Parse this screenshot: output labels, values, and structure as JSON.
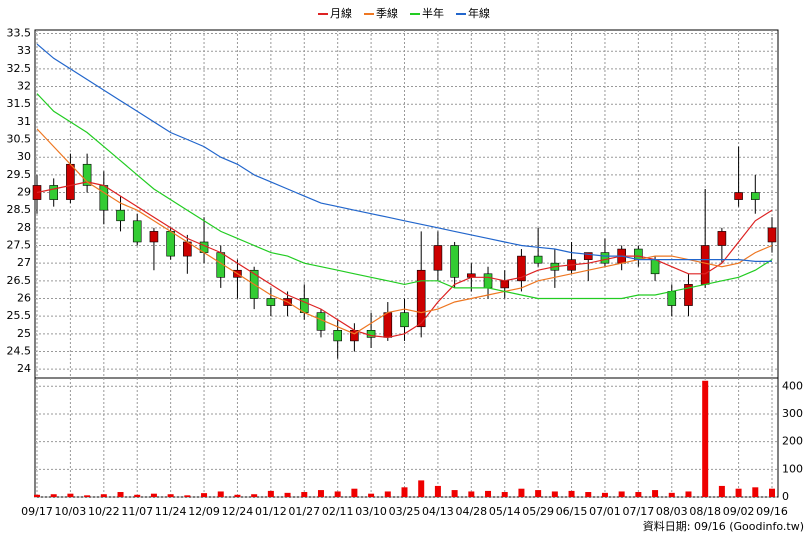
{
  "chart_data": {
    "type": "candlestick",
    "categories": [
      "09/17",
      null,
      "10/03",
      null,
      "10/22",
      null,
      "11/07",
      null,
      "11/24",
      null,
      "12/09",
      null,
      "12/24",
      null,
      "01/12",
      null,
      "01/27",
      null,
      "02/11",
      null,
      "03/10",
      null,
      "03/25",
      null,
      "04/13",
      null,
      "04/28",
      null,
      "05/14",
      null,
      "05/29",
      null,
      "06/15",
      null,
      "07/01",
      null,
      "07/17",
      null,
      "08/03",
      null,
      "08/18",
      null,
      "09/02",
      null,
      "09/16"
    ],
    "open": [
      28.8,
      29.2,
      28.8,
      29.8,
      29.2,
      28.5,
      28.2,
      27.6,
      27.9,
      27.2,
      27.6,
      27.3,
      26.6,
      26.8,
      26.0,
      25.8,
      26.0,
      25.6,
      25.1,
      24.8,
      25.1,
      24.9,
      25.6,
      25.2,
      26.8,
      27.5,
      26.6,
      26.7,
      26.3,
      26.5,
      27.2,
      27.0,
      26.8,
      27.1,
      27.3,
      27.0,
      27.4,
      27.1,
      26.2,
      25.8,
      26.4,
      27.5,
      28.8,
      29.0,
      27.6
    ],
    "high": [
      29.5,
      29.4,
      30.1,
      30.1,
      29.6,
      28.9,
      28.4,
      28.0,
      28.0,
      27.8,
      28.3,
      27.5,
      27.1,
      26.9,
      26.3,
      26.2,
      26.4,
      25.7,
      25.4,
      25.3,
      25.6,
      25.9,
      26.0,
      27.9,
      27.9,
      27.6,
      27.0,
      26.9,
      26.8,
      27.4,
      28.0,
      27.4,
      27.6,
      27.3,
      27.7,
      27.5,
      27.5,
      27.2,
      26.4,
      26.7,
      29.1,
      28.0,
      30.3,
      29.5,
      28.3
    ],
    "low": [
      28.4,
      28.6,
      28.7,
      29.0,
      28.1,
      27.9,
      27.5,
      26.8,
      27.1,
      26.7,
      27.0,
      26.3,
      26.0,
      25.7,
      25.5,
      25.5,
      25.4,
      24.9,
      24.3,
      24.5,
      24.6,
      24.8,
      24.8,
      24.9,
      26.5,
      26.3,
      26.2,
      26.0,
      26.0,
      26.2,
      26.9,
      26.3,
      26.7,
      26.5,
      26.9,
      26.8,
      26.9,
      26.5,
      25.5,
      25.5,
      26.3,
      27.0,
      28.6,
      28.4,
      27.3
    ],
    "close": [
      29.2,
      28.8,
      29.8,
      29.2,
      28.5,
      28.2,
      27.6,
      27.9,
      27.2,
      27.6,
      27.3,
      26.6,
      26.8,
      26.0,
      25.8,
      26.0,
      25.6,
      25.1,
      24.8,
      25.1,
      24.9,
      25.6,
      25.2,
      26.8,
      27.5,
      26.6,
      26.7,
      26.3,
      26.5,
      27.2,
      27.0,
      26.8,
      27.1,
      27.3,
      27.0,
      27.4,
      27.1,
      26.7,
      25.8,
      26.4,
      27.5,
      27.9,
      29.0,
      28.8,
      28.0
    ],
    "up_color": "#cc0000",
    "down_color": "#33cc33",
    "series": [
      {
        "name": "月線",
        "color": "#dd2222",
        "values": [
          29.0,
          29.1,
          29.2,
          29.3,
          29.2,
          28.9,
          28.6,
          28.3,
          28.0,
          27.7,
          27.5,
          27.3,
          27.0,
          26.7,
          26.4,
          26.1,
          25.9,
          25.7,
          25.4,
          25.1,
          24.95,
          24.9,
          25.0,
          25.3,
          25.9,
          26.4,
          26.6,
          26.6,
          26.5,
          26.6,
          26.8,
          26.9,
          26.95,
          27.0,
          27.1,
          27.2,
          27.2,
          27.1,
          26.9,
          26.7,
          26.7,
          27.0,
          27.6,
          28.2,
          28.5
        ]
      },
      {
        "name": "季線",
        "color": "#ee7722",
        "values": [
          30.8,
          30.3,
          29.8,
          29.3,
          29.0,
          28.7,
          28.5,
          28.2,
          27.9,
          27.6,
          27.3,
          27.0,
          26.7,
          26.4,
          26.1,
          25.9,
          25.6,
          25.4,
          25.2,
          25.0,
          25.3,
          25.6,
          25.7,
          25.6,
          25.7,
          25.9,
          26.0,
          26.1,
          26.2,
          26.3,
          26.5,
          26.6,
          26.7,
          26.8,
          26.9,
          27.0,
          27.1,
          27.2,
          27.2,
          27.1,
          27.0,
          26.9,
          27.0,
          27.3,
          27.5
        ]
      },
      {
        "name": "半年",
        "color": "#22cc22",
        "values": [
          31.8,
          31.3,
          31.0,
          30.7,
          30.3,
          29.9,
          29.5,
          29.1,
          28.8,
          28.5,
          28.2,
          27.9,
          27.7,
          27.5,
          27.3,
          27.2,
          27.0,
          26.9,
          26.8,
          26.7,
          26.6,
          26.5,
          26.4,
          26.5,
          26.5,
          26.3,
          26.3,
          26.3,
          26.2,
          26.1,
          26.0,
          26.0,
          26.0,
          26.0,
          26.0,
          26.0,
          26.1,
          26.1,
          26.2,
          26.3,
          26.4,
          26.5,
          26.6,
          26.8,
          27.1
        ]
      },
      {
        "name": "年線",
        "color": "#2266cc",
        "values": [
          33.2,
          32.8,
          32.5,
          32.2,
          31.9,
          31.6,
          31.3,
          31.0,
          30.7,
          30.5,
          30.3,
          30.0,
          29.8,
          29.5,
          29.3,
          29.1,
          28.9,
          28.7,
          28.6,
          28.5,
          28.4,
          28.3,
          28.2,
          28.1,
          28.0,
          27.9,
          27.8,
          27.7,
          27.6,
          27.5,
          27.45,
          27.4,
          27.3,
          27.25,
          27.2,
          27.2,
          27.1,
          27.1,
          27.1,
          27.1,
          27.1,
          27.1,
          27.1,
          27.05,
          27.05
        ]
      }
    ],
    "ylim": [
      23.75,
      33.6
    ],
    "yticks": [
      24,
      24.5,
      25,
      25.5,
      26,
      26.5,
      27,
      27.5,
      28,
      28.5,
      29,
      29.5,
      30,
      30.5,
      31,
      31.5,
      32,
      32.5,
      33,
      33.5
    ],
    "volume": {
      "color": "#ee0000",
      "values": [
        8,
        10,
        12,
        6,
        10,
        18,
        8,
        12,
        10,
        6,
        14,
        20,
        8,
        10,
        22,
        15,
        18,
        25,
        20,
        30,
        12,
        20,
        35,
        60,
        40,
        25,
        20,
        22,
        18,
        30,
        25,
        20,
        22,
        18,
        15,
        20,
        18,
        25,
        15,
        20,
        420,
        40,
        30,
        35,
        30
      ]
    },
    "y2lim": [
      0,
      430
    ],
    "y2ticks": [
      0,
      100,
      200,
      300,
      400
    ],
    "grid": true,
    "footnote": "資料日期: 09/16 (Goodinfo.tw)"
  }
}
